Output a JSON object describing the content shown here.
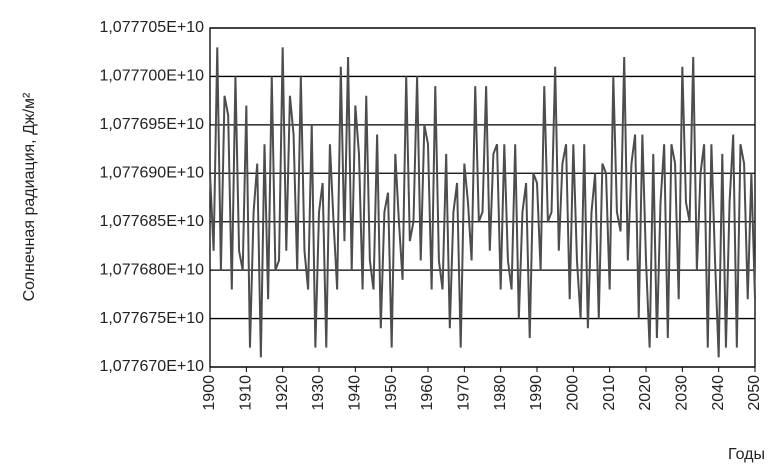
{
  "chart_data": {
    "type": "line",
    "y_label": "Солнечная радиация, Дж/м²",
    "x_label": "Годы",
    "color": "#4d4d4d",
    "grid": true,
    "x": [
      1900,
      1901,
      1902,
      1903,
      1904,
      1905,
      1906,
      1907,
      1908,
      1909,
      1910,
      1911,
      1912,
      1913,
      1914,
      1915,
      1916,
      1917,
      1918,
      1919,
      1920,
      1921,
      1922,
      1923,
      1924,
      1925,
      1926,
      1927,
      1928,
      1929,
      1930,
      1931,
      1932,
      1933,
      1934,
      1935,
      1936,
      1937,
      1938,
      1939,
      1940,
      1941,
      1942,
      1943,
      1944,
      1945,
      1946,
      1947,
      1948,
      1949,
      1950,
      1951,
      1952,
      1953,
      1954,
      1955,
      1956,
      1957,
      1958,
      1959,
      1960,
      1961,
      1962,
      1963,
      1964,
      1965,
      1966,
      1967,
      1968,
      1969,
      1970,
      1971,
      1972,
      1973,
      1974,
      1975,
      1976,
      1977,
      1978,
      1979,
      1980,
      1981,
      1982,
      1983,
      1984,
      1985,
      1986,
      1987,
      1988,
      1989,
      1990,
      1991,
      1992,
      1993,
      1994,
      1995,
      1996,
      1997,
      1998,
      1999,
      2000,
      2001,
      2002,
      2003,
      2004,
      2005,
      2006,
      2007,
      2008,
      2009,
      2010,
      2011,
      2012,
      2013,
      2014,
      2015,
      2016,
      2017,
      2018,
      2019,
      2020,
      2021,
      2022,
      2023,
      2024,
      2025,
      2026,
      2027,
      2028,
      2029,
      2030,
      2031,
      2032,
      2033,
      2034,
      2035,
      2036,
      2037,
      2038,
      2039,
      2040,
      2041,
      2042,
      2043,
      2044,
      2045,
      2046,
      2047,
      2048,
      2049,
      2050
    ],
    "values": [
      10776900000,
      10776820000,
      10777030000,
      10776800000,
      10776980000,
      10776960000,
      10776780000,
      10777000000,
      10776820000,
      10776800000,
      10776970000,
      10776720000,
      10776860000,
      10776910000,
      10776710000,
      10776930000,
      10776770000,
      10777000000,
      10776800000,
      10776810000,
      10777030000,
      10776820000,
      10776980000,
      10776940000,
      10776800000,
      10777000000,
      10776820000,
      10776780000,
      10776950000,
      10776720000,
      10776860000,
      10776890000,
      10776720000,
      10776930000,
      10776850000,
      10776780000,
      10777010000,
      10776830000,
      10777020000,
      10776800000,
      10776970000,
      10776920000,
      10776780000,
      10776980000,
      10776810000,
      10776780000,
      10776940000,
      10776740000,
      10776860000,
      10776880000,
      10776720000,
      10776920000,
      10776850000,
      10776790000,
      10777000000,
      10776830000,
      10776850000,
      10777000000,
      10776810000,
      10776950000,
      10776930000,
      10776780000,
      10776990000,
      10776810000,
      10776780000,
      10776920000,
      10776740000,
      10776860000,
      10776890000,
      10776720000,
      10776910000,
      10776870000,
      10776810000,
      10776990000,
      10776850000,
      10776860000,
      10776990000,
      10776820000,
      10776920000,
      10776930000,
      10776780000,
      10776930000,
      10776810000,
      10776780000,
      10776930000,
      10776750000,
      10776860000,
      10776890000,
      10776730000,
      10776900000,
      10776890000,
      10776800000,
      10776990000,
      10776850000,
      10776860000,
      10777010000,
      10776820000,
      10776910000,
      10776930000,
      10776770000,
      10776930000,
      10776810000,
      10776750000,
      10776930000,
      10776740000,
      10776860000,
      10776900000,
      10776750000,
      10776910000,
      10776900000,
      10776780000,
      10777000000,
      10776860000,
      10776840000,
      10777020000,
      10776810000,
      10776910000,
      10776940000,
      10776750000,
      10776940000,
      10776810000,
      10776720000,
      10776920000,
      10776730000,
      10776870000,
      10776930000,
      10776730000,
      10776930000,
      10776910000,
      10776770000,
      10777010000,
      10776870000,
      10776850000,
      10777020000,
      10776800000,
      10776900000,
      10776930000,
      10776720000,
      10776930000,
      10776810000,
      10776710000,
      10776920000,
      10776720000,
      10776870000,
      10776940000,
      10776720000,
      10776930000,
      10776910000,
      10776770000,
      10776900000,
      10776770000
    ],
    "xlim": [
      1900,
      2050
    ],
    "xticks": [
      1900,
      1910,
      1920,
      1930,
      1940,
      1950,
      1960,
      1970,
      1980,
      1990,
      2000,
      2010,
      2020,
      2030,
      2040,
      2050
    ],
    "ylim": [
      10776700000,
      10777050000
    ],
    "yticks": [
      {
        "value": 10776700000,
        "label": "1,077670E+10"
      },
      {
        "value": 10776750000,
        "label": "1,077675E+10"
      },
      {
        "value": 10776800000,
        "label": "1,077680E+10"
      },
      {
        "value": 10776850000,
        "label": "1,077685E+10"
      },
      {
        "value": 10776900000,
        "label": "1,077690E+10"
      },
      {
        "value": 10776950000,
        "label": "1,077695E+10"
      },
      {
        "value": 10777000000,
        "label": "1,077700E+10"
      },
      {
        "value": 10777050000,
        "label": "1,077705E+10"
      }
    ]
  }
}
